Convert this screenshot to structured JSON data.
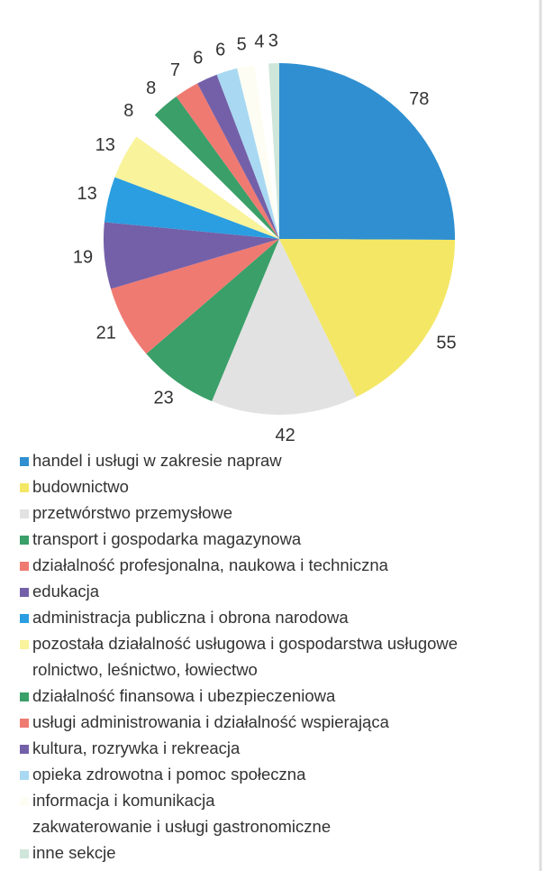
{
  "chart_data": {
    "type": "pie",
    "categories": [
      "handel i usługi w zakresie napraw",
      "budownictwo",
      "przetwórstwo przemysłowe",
      "transport i gospodarka magazynowa",
      "działalność profesjonalna, naukowa i techniczna",
      "edukacja",
      "administracja publiczna i obrona narodowa",
      "pozostała działalność usługowa i gospodarstwa usługowe",
      "rolnictwo, leśnictwo, łowiectwo",
      "działalność finansowa i ubezpieczeniowa",
      "usługi administrowania i działalność wspierająca",
      "kultura, rozrywka i rekreacja",
      "opieka zdrowotna i pomoc społeczna",
      "informacja i komunikacja",
      "zakwaterowanie i usługi gastronomiczne",
      "inne sekcje"
    ],
    "values": [
      78,
      55,
      42,
      23,
      21,
      19,
      13,
      13,
      8,
      8,
      7,
      6,
      6,
      5,
      4,
      3
    ],
    "colors": [
      "#2f8fd0",
      "#f4e765",
      "#e2e2e2",
      "#3a9f68",
      "#ef7a72",
      "#7460a8",
      "#2a9ee0",
      "#f9f39c",
      "#ffffff",
      "#3a9f68",
      "#ef7a72",
      "#7460a8",
      "#a9d9f2",
      "#fdfdf4",
      "#ffffff",
      "#cfe6da"
    ],
    "legend": "bottom"
  }
}
